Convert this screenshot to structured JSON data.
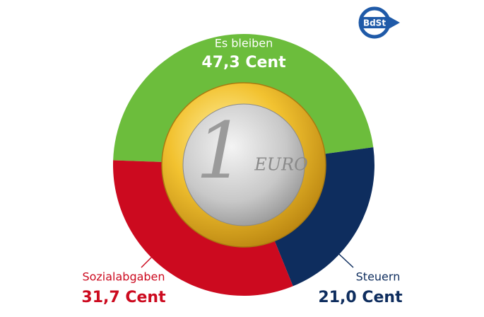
{
  "chart_data": {
    "type": "donut",
    "categories": [
      "Es bleiben",
      "Steuern",
      "Sozialabgaben"
    ],
    "values": [
      47.3,
      21.0,
      31.7
    ],
    "value_labels": [
      "47,3 Cent",
      "21,0 Cent",
      "31,7 Cent"
    ],
    "colors": [
      "#6cbd3c",
      "#0e2d5e",
      "#cc0a1f"
    ],
    "label_colors": [
      "#ffffff",
      "#0e2d5e",
      "#cc0a1f"
    ]
  },
  "coin": {
    "denomination": "1",
    "currency": "EURO"
  },
  "logo": "BdSt"
}
